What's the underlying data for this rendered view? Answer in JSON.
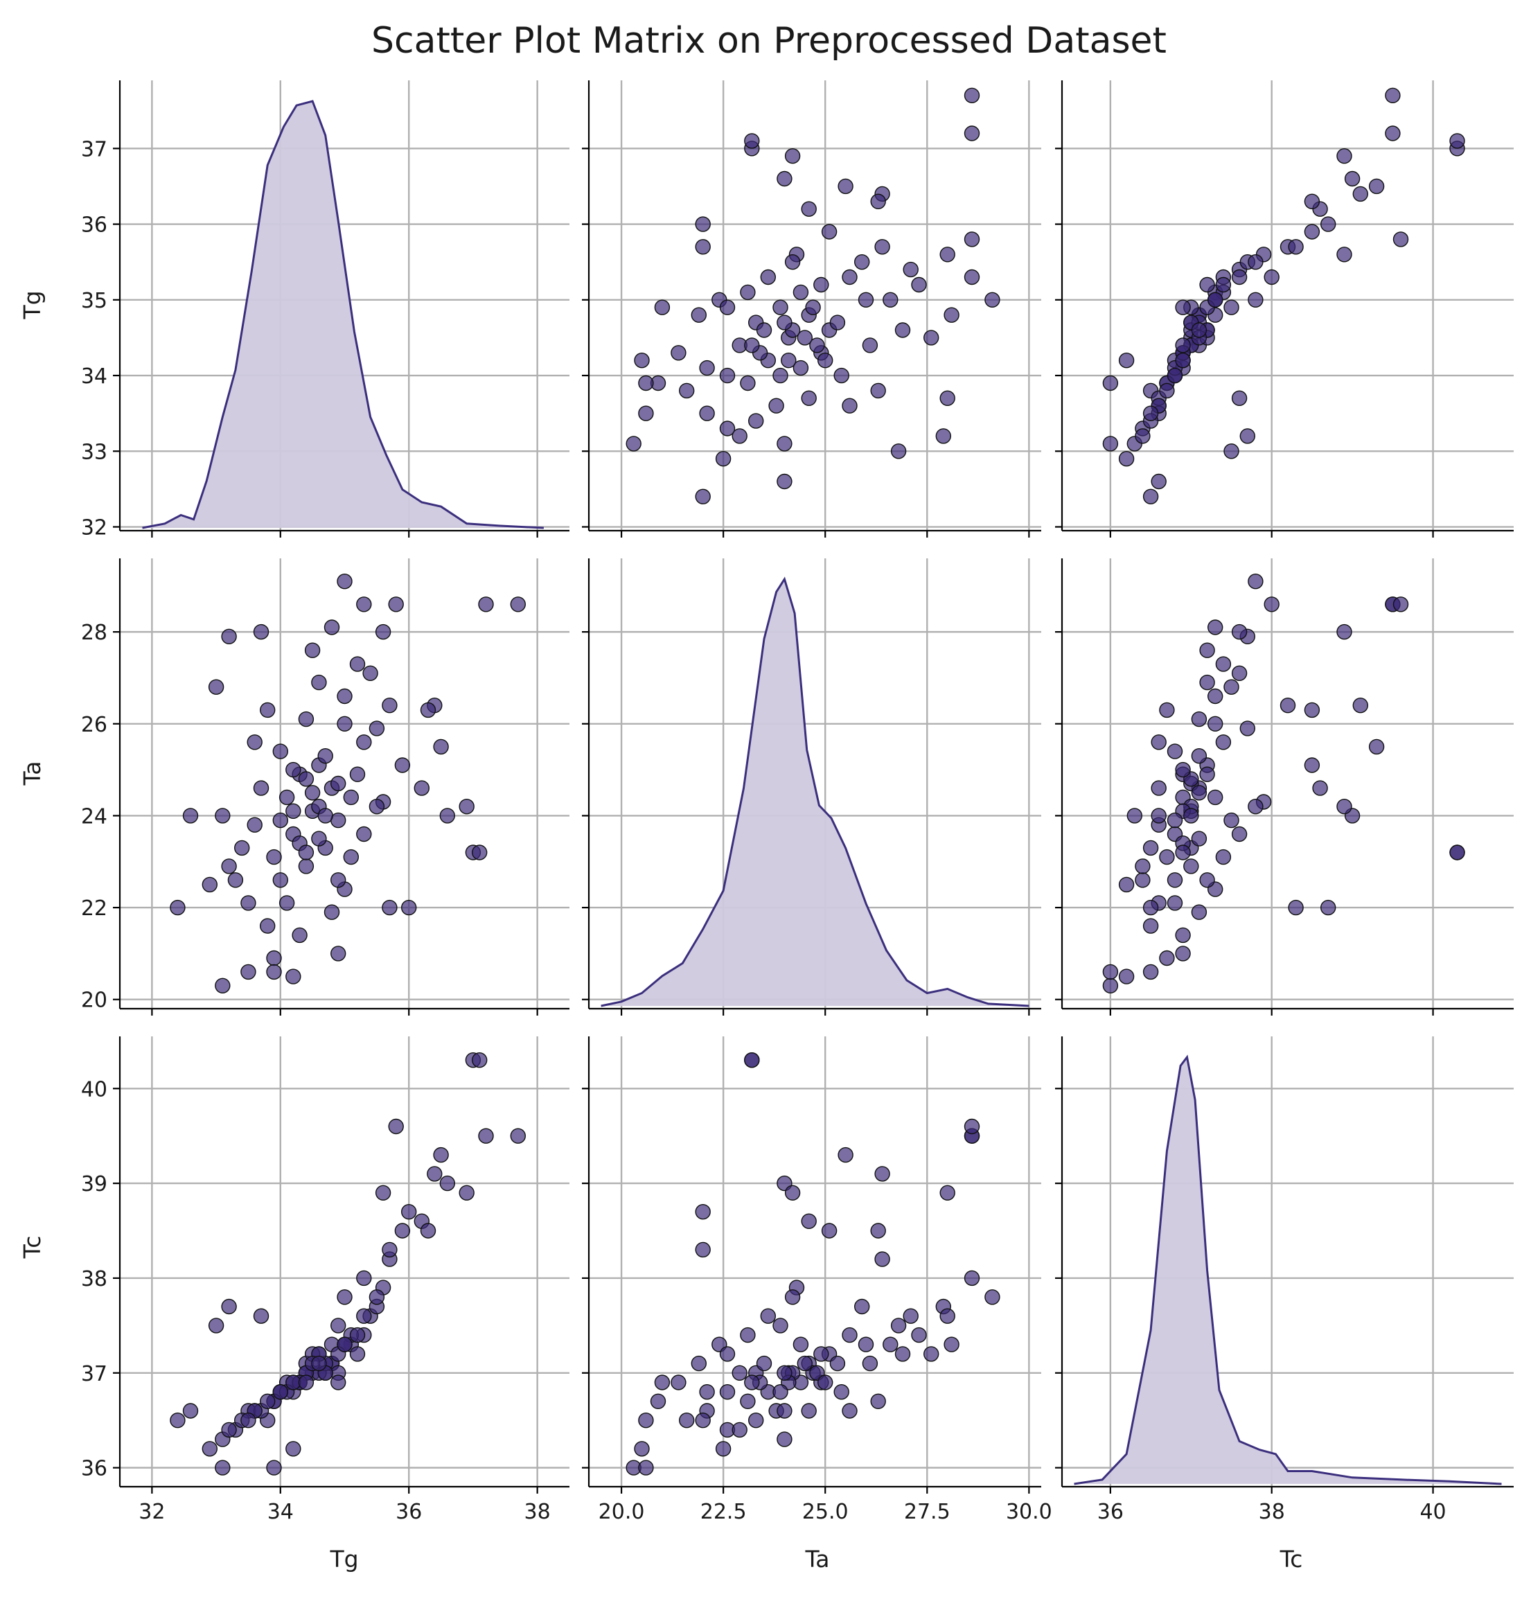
{
  "figure": {
    "title": "Scatter Plot Matrix on Preprocessed Dataset",
    "point_color": "#3b2a78",
    "kde_line_color": "#3b2f7d",
    "kde_fill_color": "#cfc9de",
    "grid": true
  },
  "chart_data": {
    "type": "scatter",
    "variables": [
      {
        "name": "Tg",
        "label": "Tg",
        "range": [
          31.5,
          38.5
        ],
        "ylim": [
          31.95,
          37.9
        ],
        "ticks": [
          32,
          34,
          36,
          38
        ],
        "y_ticks": [
          32,
          33,
          34,
          35,
          36,
          37
        ],
        "tick_labels": [
          "32",
          "34",
          "36",
          "38"
        ],
        "y_tick_labels": [
          "32",
          "33",
          "34",
          "35",
          "36",
          "37"
        ]
      },
      {
        "name": "Ta",
        "label": "Ta",
        "range": [
          19.2,
          30.3
        ],
        "ylim": [
          19.8,
          29.6
        ],
        "ticks": [
          20.0,
          22.5,
          25.0,
          27.5,
          30.0
        ],
        "y_ticks": [
          20,
          22,
          24,
          26,
          28
        ],
        "tick_labels": [
          "20.0",
          "22.5",
          "25.0",
          "27.5",
          "30.0"
        ],
        "y_tick_labels": [
          "20",
          "22",
          "24",
          "26",
          "28"
        ]
      },
      {
        "name": "Tc",
        "label": "Tc",
        "range": [
          35.4,
          41.0
        ],
        "ylim": [
          35.8,
          40.55
        ],
        "ticks": [
          36,
          38,
          40
        ],
        "y_ticks": [
          36,
          37,
          38,
          39,
          40
        ],
        "tick_labels": [
          "36",
          "38",
          "40"
        ],
        "y_tick_labels": [
          "36",
          "37",
          "38",
          "39",
          "40"
        ]
      }
    ],
    "diagonal": "kde",
    "kde": {
      "Tg": [
        [
          31.85,
          0.0
        ],
        [
          32.2,
          0.01
        ],
        [
          32.45,
          0.03
        ],
        [
          32.65,
          0.02
        ],
        [
          32.85,
          0.11
        ],
        [
          33.1,
          0.26
        ],
        [
          33.3,
          0.37
        ],
        [
          33.55,
          0.6
        ],
        [
          33.8,
          0.85
        ],
        [
          34.05,
          0.94
        ],
        [
          34.25,
          0.99
        ],
        [
          34.5,
          1.0
        ],
        [
          34.7,
          0.92
        ],
        [
          34.9,
          0.72
        ],
        [
          35.15,
          0.46
        ],
        [
          35.4,
          0.26
        ],
        [
          35.65,
          0.17
        ],
        [
          35.9,
          0.09
        ],
        [
          36.2,
          0.06
        ],
        [
          36.5,
          0.05
        ],
        [
          36.9,
          0.01
        ],
        [
          37.4,
          0.005
        ],
        [
          38.1,
          0.0
        ]
      ],
      "Ta": [
        [
          19.5,
          0.0
        ],
        [
          20.0,
          0.01
        ],
        [
          20.5,
          0.03
        ],
        [
          21.0,
          0.07
        ],
        [
          21.5,
          0.1
        ],
        [
          22.0,
          0.18
        ],
        [
          22.5,
          0.27
        ],
        [
          23.0,
          0.51
        ],
        [
          23.5,
          0.86
        ],
        [
          23.8,
          0.97
        ],
        [
          24.0,
          1.0
        ],
        [
          24.25,
          0.92
        ],
        [
          24.55,
          0.6
        ],
        [
          24.85,
          0.47
        ],
        [
          25.15,
          0.44
        ],
        [
          25.5,
          0.37
        ],
        [
          26.0,
          0.24
        ],
        [
          26.5,
          0.13
        ],
        [
          27.0,
          0.06
        ],
        [
          27.5,
          0.03
        ],
        [
          28.0,
          0.04
        ],
        [
          28.5,
          0.02
        ],
        [
          29.0,
          0.005
        ],
        [
          30.0,
          0.0
        ]
      ],
      "Tc": [
        [
          35.55,
          0.0
        ],
        [
          35.9,
          0.01
        ],
        [
          36.2,
          0.07
        ],
        [
          36.5,
          0.36
        ],
        [
          36.7,
          0.78
        ],
        [
          36.87,
          0.98
        ],
        [
          36.95,
          1.0
        ],
        [
          37.05,
          0.9
        ],
        [
          37.2,
          0.5
        ],
        [
          37.35,
          0.22
        ],
        [
          37.6,
          0.1
        ],
        [
          37.85,
          0.08
        ],
        [
          38.05,
          0.07
        ],
        [
          38.2,
          0.03
        ],
        [
          38.5,
          0.03
        ],
        [
          39.0,
          0.015
        ],
        [
          39.6,
          0.01
        ],
        [
          40.2,
          0.006
        ],
        [
          40.85,
          0.0
        ]
      ]
    },
    "points": [
      [
        34.5,
        24.1,
        37.0
      ],
      [
        34.2,
        23.6,
        36.8
      ],
      [
        34.8,
        24.6,
        37.1
      ],
      [
        33.9,
        23.1,
        36.7
      ],
      [
        34.6,
        25.1,
        37.2
      ],
      [
        35.1,
        24.4,
        37.3
      ],
      [
        34.0,
        22.6,
        36.8
      ],
      [
        34.3,
        24.9,
        36.9
      ],
      [
        35.3,
        25.6,
        37.4
      ],
      [
        33.6,
        23.8,
        36.6
      ],
      [
        34.7,
        23.3,
        37.0
      ],
      [
        34.4,
        26.1,
        37.1
      ],
      [
        33.5,
        22.1,
        36.6
      ],
      [
        35.0,
        26.6,
        37.3
      ],
      [
        34.9,
        23.9,
        37.5
      ],
      [
        34.1,
        24.4,
        36.9
      ],
      [
        33.8,
        21.6,
        36.5
      ],
      [
        35.4,
        27.1,
        37.6
      ],
      [
        34.4,
        22.9,
        37.0
      ],
      [
        34.6,
        24.2,
        37.0
      ],
      [
        33.3,
        22.6,
        36.4
      ],
      [
        35.2,
        24.9,
        37.2
      ],
      [
        34.0,
        25.4,
        36.8
      ],
      [
        34.8,
        21.9,
        37.1
      ],
      [
        35.5,
        25.9,
        37.7
      ],
      [
        33.7,
        24.6,
        36.6
      ],
      [
        34.3,
        23.4,
        36.9
      ],
      [
        35.1,
        23.1,
        37.4
      ],
      [
        34.5,
        27.6,
        37.2
      ],
      [
        33.9,
        20.9,
        36.7
      ],
      [
        35.7,
        26.4,
        38.2
      ],
      [
        34.2,
        24.1,
        36.9
      ],
      [
        34.7,
        25.3,
        37.1
      ],
      [
        33.4,
        23.3,
        36.5
      ],
      [
        35.0,
        22.4,
        37.3
      ],
      [
        34.9,
        24.7,
        37.0
      ],
      [
        33.1,
        24.0,
        36.3
      ],
      [
        35.6,
        24.3,
        37.9
      ],
      [
        34.6,
        26.9,
        37.2
      ],
      [
        34.1,
        22.1,
        36.8
      ],
      [
        34.4,
        24.8,
        37.0
      ],
      [
        35.3,
        23.6,
        37.6
      ],
      [
        33.6,
        25.6,
        36.6
      ],
      [
        34.8,
        28.1,
        37.3
      ],
      [
        34.0,
        23.9,
        36.8
      ],
      [
        35.9,
        25.1,
        38.5
      ],
      [
        34.3,
        21.4,
        36.9
      ],
      [
        34.5,
        24.5,
        37.1
      ],
      [
        33.2,
        22.9,
        36.4
      ],
      [
        35.2,
        27.3,
        37.4
      ],
      [
        36.2,
        24.6,
        38.6
      ],
      [
        34.7,
        24.0,
        37.0
      ],
      [
        33.8,
        26.3,
        36.7
      ],
      [
        34.9,
        22.6,
        37.2
      ],
      [
        35.5,
        24.2,
        37.8
      ],
      [
        34.2,
        25.0,
        36.9
      ],
      [
        33.5,
        20.6,
        36.5
      ],
      [
        34.6,
        23.5,
        37.1
      ],
      [
        35.0,
        26.0,
        37.3
      ],
      [
        34.4,
        23.2,
        36.9
      ],
      [
        32.6,
        24.0,
        36.6
      ],
      [
        32.4,
        22.0,
        36.5
      ],
      [
        32.9,
        22.5,
        36.2
      ],
      [
        33.0,
        26.8,
        37.5
      ],
      [
        33.1,
        20.3,
        36.0
      ],
      [
        33.2,
        27.9,
        37.7
      ],
      [
        36.0,
        22.0,
        38.7
      ],
      [
        36.4,
        26.4,
        39.1
      ],
      [
        36.5,
        25.5,
        39.3
      ],
      [
        36.6,
        24.0,
        39.0
      ],
      [
        37.0,
        23.2,
        40.3
      ],
      [
        37.1,
        23.2,
        40.3
      ],
      [
        37.2,
        28.6,
        39.5
      ],
      [
        37.7,
        28.6,
        39.5
      ],
      [
        36.9,
        24.2,
        38.9
      ],
      [
        35.8,
        28.6,
        39.6
      ],
      [
        36.3,
        26.3,
        38.5
      ],
      [
        35.6,
        28.0,
        38.9
      ],
      [
        33.7,
        28.0,
        37.6
      ],
      [
        34.2,
        20.5,
        36.2
      ],
      [
        33.9,
        20.6,
        36.0
      ],
      [
        35.0,
        29.1,
        37.8
      ],
      [
        35.3,
        28.6,
        38.0
      ],
      [
        34.9,
        21.0,
        36.9
      ],
      [
        35.7,
        22.0,
        38.3
      ]
    ]
  }
}
